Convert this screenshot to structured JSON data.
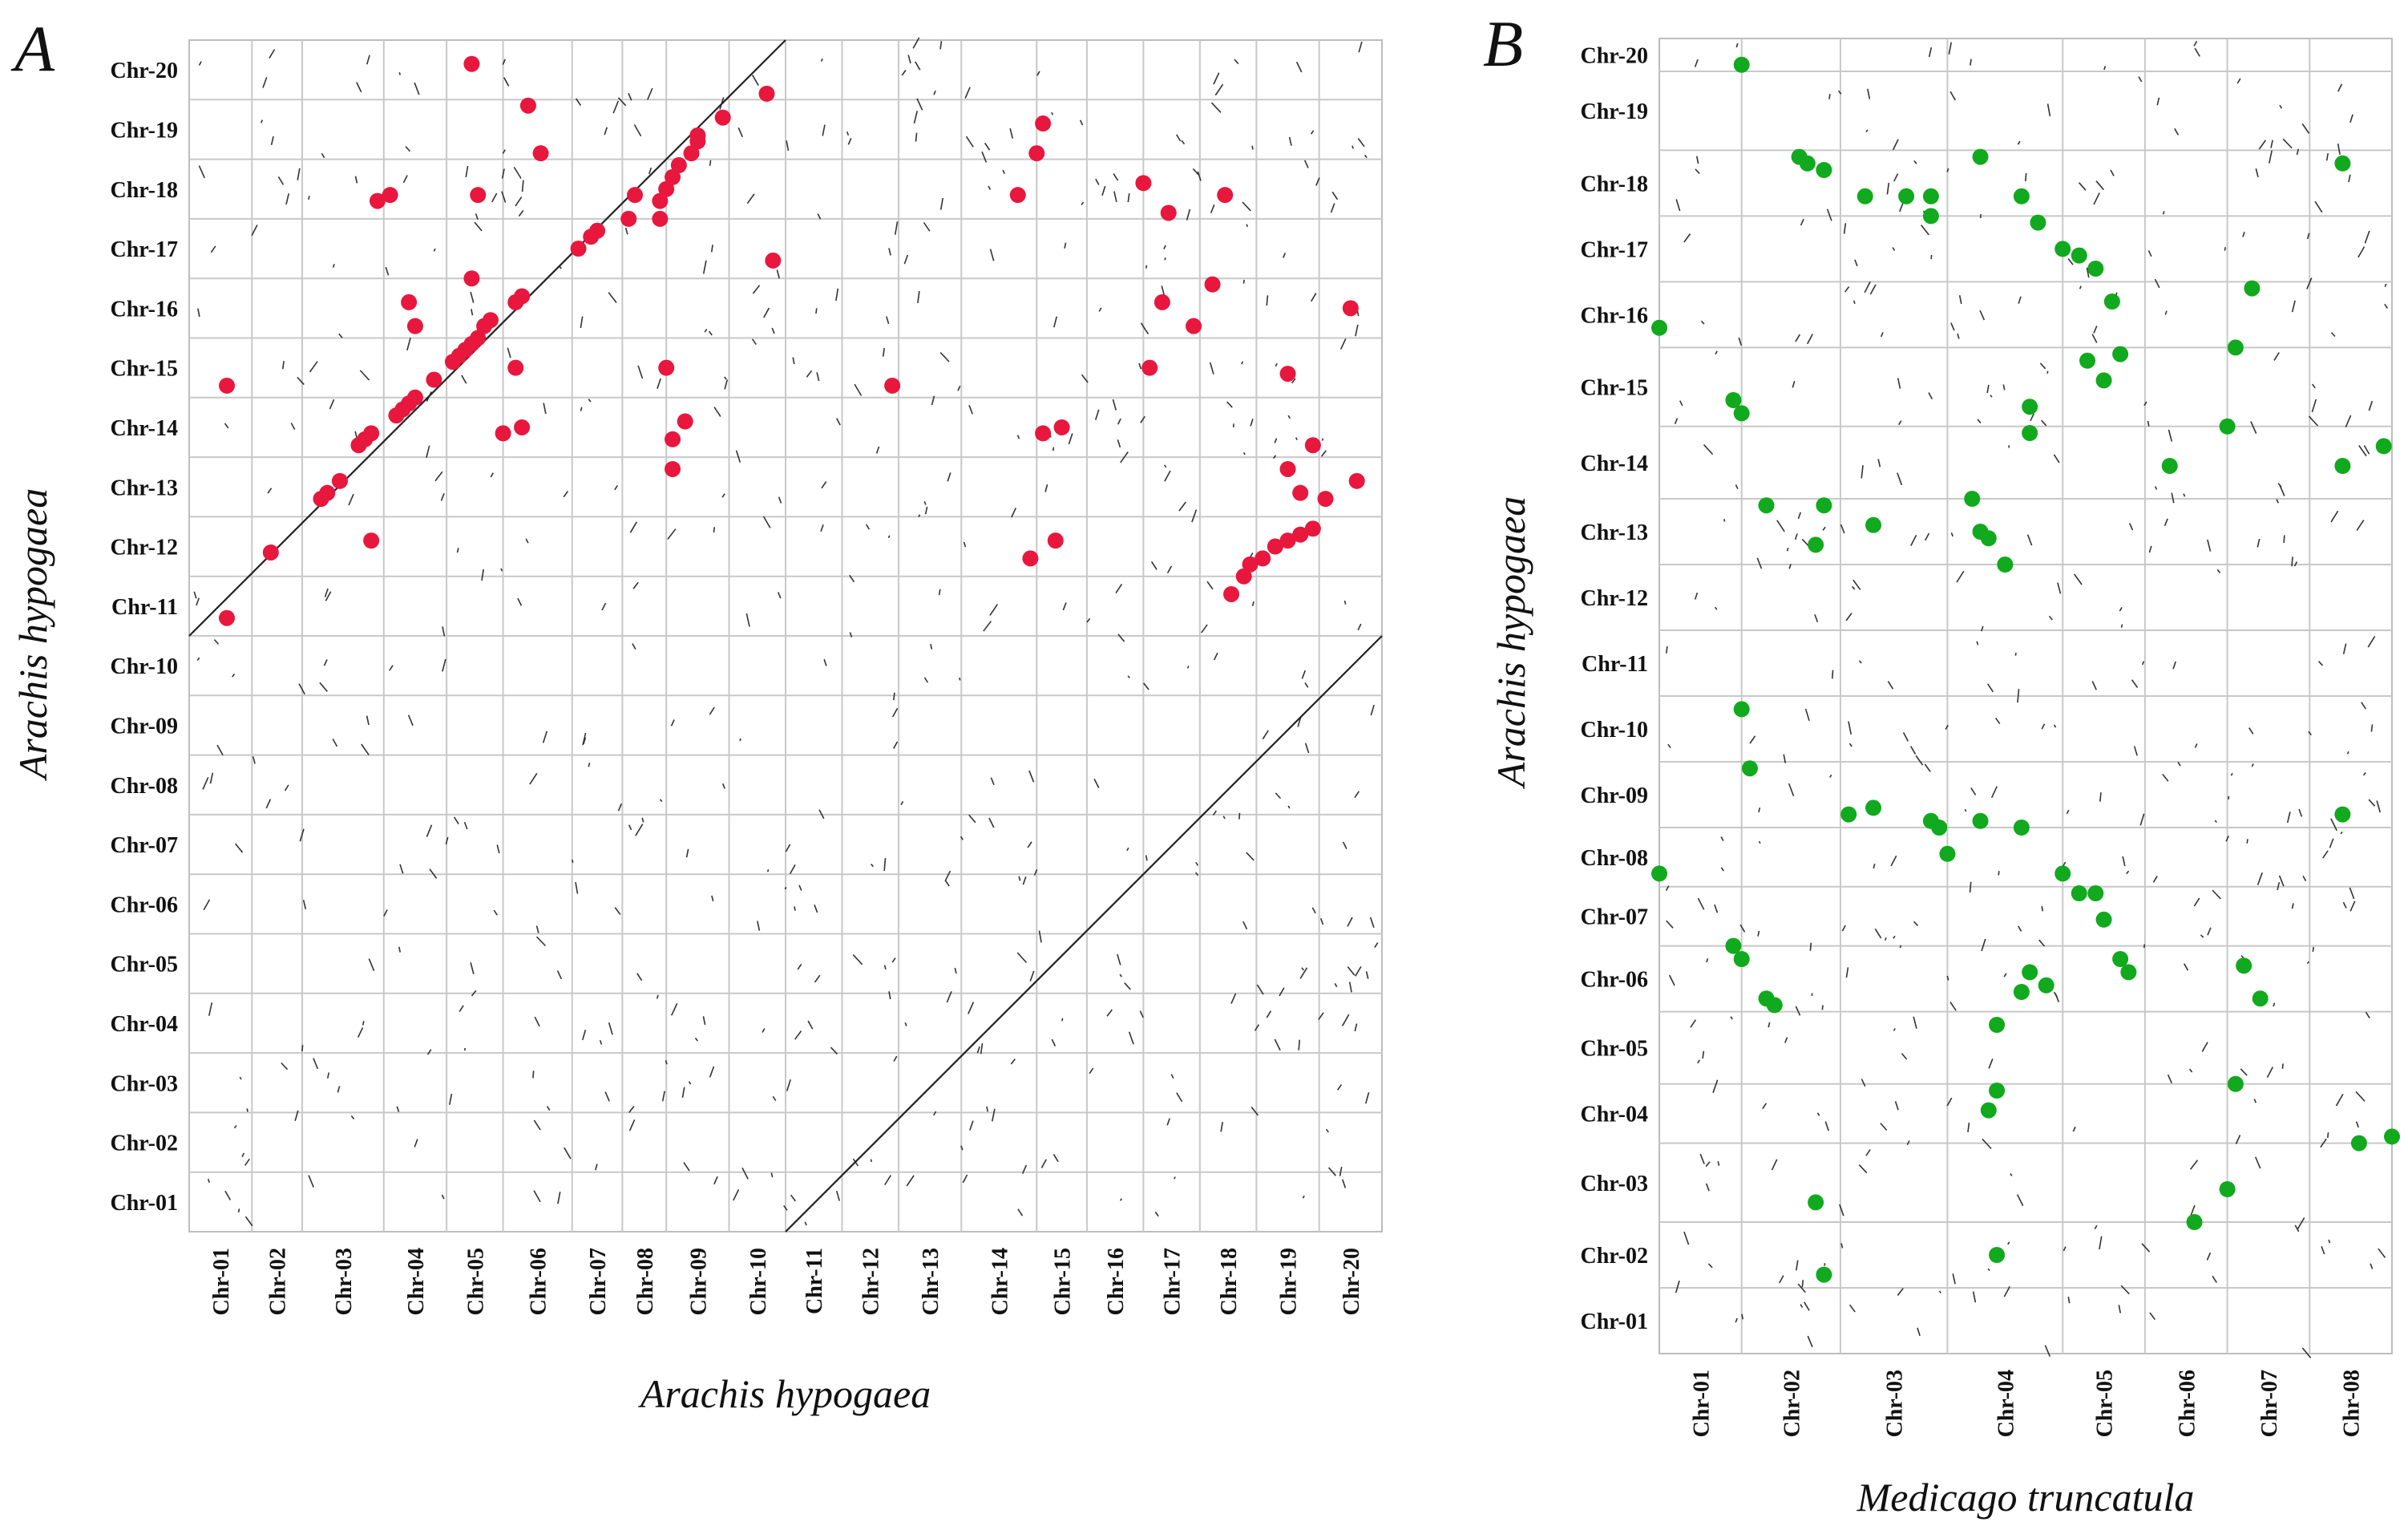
{
  "chart_data": [
    {
      "type": "scatter",
      "panel": "A",
      "title": "",
      "xlabel": "Arachis hypogaea",
      "ylabel": "Arachis hypogaea",
      "x_ticks": [
        "Chr-01",
        "Chr-02",
        "Chr-03",
        "Chr-04",
        "Chr-05",
        "Chr-06",
        "Chr-07",
        "Chr-08",
        "Chr-09",
        "Chr-10",
        "Chr-11",
        "Chr-12",
        "Chr-13",
        "Chr-14",
        "Chr-15",
        "Chr-16",
        "Chr-17",
        "Chr-18",
        "Chr-19",
        "Chr-20"
      ],
      "y_ticks": [
        "Chr-20",
        "Chr-19",
        "Chr-18",
        "Chr-17",
        "Chr-16",
        "Chr-15",
        "Chr-14",
        "Chr-13",
        "Chr-12",
        "Chr-11",
        "Chr-10",
        "Chr-09",
        "Chr-08",
        "Chr-07",
        "Chr-06",
        "Chr-05",
        "Chr-04",
        "Chr-03",
        "Chr-02",
        "Chr-01"
      ],
      "x_bounds": [
        0,
        1.0,
        1.8,
        3.1,
        4.1,
        5.0,
        6.1,
        6.9,
        7.6,
        8.6,
        9.5,
        10.4,
        11.3,
        12.3,
        13.5,
        14.3,
        15.2,
        16.1,
        17.0,
        18.0,
        19.0
      ],
      "y_bounds": [
        0,
        1.0,
        2.0,
        3.0,
        4.0,
        5.0,
        6.0,
        7.0,
        8.0,
        9.0,
        10.0,
        11.0,
        12.0,
        13.0,
        14.0,
        15.0,
        16.0,
        17.0,
        18.0,
        19.0,
        20.0
      ],
      "xlim": [
        0,
        19.0
      ],
      "ylim": [
        0,
        20.0
      ],
      "grid": true,
      "point_color": "#e8173d",
      "diagonals": [
        {
          "x": [
            0,
            9.5
          ],
          "y": [
            10.0,
            20.0
          ]
        },
        {
          "x": [
            9.5,
            19.0
          ],
          "y": [
            0,
            10.0
          ]
        }
      ],
      "points": [
        [
          0.6,
          10.3
        ],
        [
          1.3,
          11.4
        ],
        [
          2.1,
          12.3
        ],
        [
          2.2,
          12.4
        ],
        [
          2.4,
          12.6
        ],
        [
          2.7,
          13.2
        ],
        [
          2.8,
          13.3
        ],
        [
          2.9,
          13.4
        ],
        [
          3.3,
          13.7
        ],
        [
          3.4,
          13.8
        ],
        [
          3.5,
          13.9
        ],
        [
          3.6,
          14.0
        ],
        [
          3.9,
          14.3
        ],
        [
          4.2,
          14.6
        ],
        [
          4.3,
          14.7
        ],
        [
          4.4,
          14.8
        ],
        [
          4.5,
          14.9
        ],
        [
          4.6,
          15.0
        ],
        [
          4.7,
          15.2
        ],
        [
          4.8,
          15.3
        ],
        [
          5.2,
          15.6
        ],
        [
          0.6,
          14.2
        ],
        [
          2.9,
          11.6
        ],
        [
          3.5,
          15.6
        ],
        [
          3.6,
          15.2
        ],
        [
          4.5,
          16.0
        ],
        [
          4.6,
          17.4
        ],
        [
          5.0,
          13.4
        ],
        [
          5.3,
          13.5
        ],
        [
          5.4,
          18.9
        ],
        [
          5.6,
          18.1
        ],
        [
          3.0,
          17.3
        ],
        [
          3.2,
          17.4
        ],
        [
          5.2,
          14.5
        ],
        [
          5.3,
          15.7
        ],
        [
          4.5,
          19.6
        ],
        [
          6.2,
          16.5
        ],
        [
          6.4,
          16.7
        ],
        [
          6.5,
          16.8
        ],
        [
          7.0,
          17.0
        ],
        [
          7.1,
          17.4
        ],
        [
          7.5,
          17.3
        ],
        [
          7.6,
          17.5
        ],
        [
          7.7,
          17.7
        ],
        [
          7.8,
          17.9
        ],
        [
          8.0,
          18.1
        ],
        [
          8.1,
          18.3
        ],
        [
          8.1,
          18.4
        ],
        [
          8.5,
          18.7
        ],
        [
          9.2,
          19.1
        ],
        [
          7.5,
          17.0
        ],
        [
          9.3,
          16.3
        ],
        [
          7.6,
          14.5
        ],
        [
          7.9,
          13.6
        ],
        [
          7.7,
          13.3
        ],
        [
          7.7,
          12.8
        ],
        [
          16.6,
          10.7
        ],
        [
          16.8,
          11.0
        ],
        [
          16.9,
          11.2
        ],
        [
          17.1,
          11.3
        ],
        [
          17.3,
          11.5
        ],
        [
          17.5,
          11.6
        ],
        [
          17.7,
          11.7
        ],
        [
          17.9,
          11.8
        ],
        [
          18.1,
          12.3
        ],
        [
          18.6,
          12.6
        ],
        [
          13.5,
          18.1
        ],
        [
          13.6,
          18.6
        ],
        [
          15.2,
          17.6
        ],
        [
          15.6,
          17.1
        ],
        [
          16.5,
          17.4
        ],
        [
          13.2,
          17.4
        ],
        [
          11.2,
          14.2
        ],
        [
          13.6,
          13.4
        ],
        [
          13.9,
          13.5
        ],
        [
          15.3,
          14.5
        ],
        [
          15.5,
          15.6
        ],
        [
          16.0,
          15.2
        ],
        [
          16.3,
          15.9
        ],
        [
          17.9,
          13.2
        ],
        [
          17.7,
          12.4
        ],
        [
          17.5,
          12.8
        ],
        [
          18.5,
          15.5
        ],
        [
          17.5,
          14.4
        ],
        [
          13.4,
          11.3
        ],
        [
          13.8,
          11.6
        ]
      ]
    },
    {
      "type": "scatter",
      "panel": "B",
      "title": "",
      "xlabel": "Medicago truncatula",
      "ylabel": "Arachis hypogaea",
      "x_ticks": [
        "Chr-01",
        "Chr-02",
        "Chr-03",
        "Chr-04",
        "Chr-05",
        "Chr-06",
        "Chr-07",
        "Chr-08"
      ],
      "y_ticks": [
        "Chr-20",
        "Chr-19",
        "Chr-18",
        "Chr-17",
        "Chr-16",
        "Chr-15",
        "Chr-14",
        "Chr-13",
        "Chr-12",
        "Chr-11",
        "Chr-10",
        "Chr-09",
        "Chr-08",
        "Chr-07",
        "Chr-06",
        "Chr-05",
        "Chr-04",
        "Chr-03",
        "Chr-02",
        "Chr-01"
      ],
      "x_bounds": [
        0,
        1.0,
        2.2,
        3.5,
        4.9,
        5.9,
        6.9,
        7.9,
        8.9
      ],
      "y_bounds": [
        0,
        1.0,
        2.0,
        3.2,
        4.1,
        5.2,
        6.2,
        7.1,
        8.0,
        9.0,
        10.0,
        11.0,
        12.0,
        13.0,
        14.1,
        15.3,
        16.3,
        17.3,
        18.3,
        19.5,
        20.0
      ],
      "xlim": [
        0,
        8.9
      ],
      "ylim": [
        0,
        20.0
      ],
      "grid": true,
      "point_color": "#11a91d",
      "points": [
        [
          1.0,
          19.6
        ],
        [
          0.0,
          15.6
        ],
        [
          0.9,
          14.5
        ],
        [
          1.0,
          14.3
        ],
        [
          1.3,
          12.9
        ],
        [
          2.0,
          12.9
        ],
        [
          1.9,
          12.3
        ],
        [
          1.7,
          18.2
        ],
        [
          1.8,
          18.1
        ],
        [
          2.0,
          18.0
        ],
        [
          2.5,
          17.6
        ],
        [
          3.0,
          17.6
        ],
        [
          3.3,
          17.6
        ],
        [
          3.3,
          17.3
        ],
        [
          3.9,
          18.2
        ],
        [
          4.4,
          17.6
        ],
        [
          4.6,
          17.2
        ],
        [
          4.9,
          16.8
        ],
        [
          5.1,
          16.7
        ],
        [
          5.3,
          16.5
        ],
        [
          5.5,
          16.0
        ],
        [
          5.2,
          15.1
        ],
        [
          5.4,
          14.8
        ],
        [
          5.6,
          15.2
        ],
        [
          4.5,
          14.4
        ],
        [
          4.5,
          14.0
        ],
        [
          7.0,
          15.3
        ],
        [
          6.9,
          14.1
        ],
        [
          7.2,
          16.2
        ],
        [
          8.3,
          18.1
        ],
        [
          1.0,
          9.8
        ],
        [
          1.1,
          8.9
        ],
        [
          0.0,
          7.3
        ],
        [
          0.9,
          6.2
        ],
        [
          1.0,
          6.0
        ],
        [
          1.3,
          5.4
        ],
        [
          1.4,
          5.3
        ],
        [
          1.9,
          2.3
        ],
        [
          2.0,
          1.2
        ],
        [
          2.3,
          8.2
        ],
        [
          2.6,
          8.3
        ],
        [
          3.3,
          8.1
        ],
        [
          3.4,
          8.0
        ],
        [
          3.5,
          7.6
        ],
        [
          3.9,
          8.1
        ],
        [
          4.1,
          5.0
        ],
        [
          4.1,
          4.0
        ],
        [
          4.0,
          3.7
        ],
        [
          4.4,
          8.0
        ],
        [
          4.5,
          5.8
        ],
        [
          4.7,
          5.6
        ],
        [
          4.9,
          7.3
        ],
        [
          5.1,
          7.0
        ],
        [
          5.3,
          7.0
        ],
        [
          5.4,
          6.6
        ],
        [
          5.6,
          6.0
        ],
        [
          5.7,
          5.8
        ],
        [
          6.5,
          2.0
        ],
        [
          6.9,
          2.5
        ],
        [
          7.0,
          4.1
        ],
        [
          7.1,
          5.9
        ],
        [
          7.3,
          5.4
        ],
        [
          8.3,
          8.2
        ],
        [
          8.5,
          3.2
        ],
        [
          8.9,
          3.3
        ],
        [
          4.4,
          5.5
        ],
        [
          4.2,
          12.0
        ],
        [
          4.0,
          12.4
        ],
        [
          3.8,
          13.0
        ],
        [
          3.9,
          12.5
        ],
        [
          6.2,
          13.5
        ],
        [
          8.3,
          13.5
        ],
        [
          8.8,
          13.8
        ],
        [
          2.6,
          12.6
        ],
        [
          4.1,
          1.5
        ]
      ]
    }
  ],
  "labels": {
    "panel_a": "A",
    "panel_b": "B"
  }
}
